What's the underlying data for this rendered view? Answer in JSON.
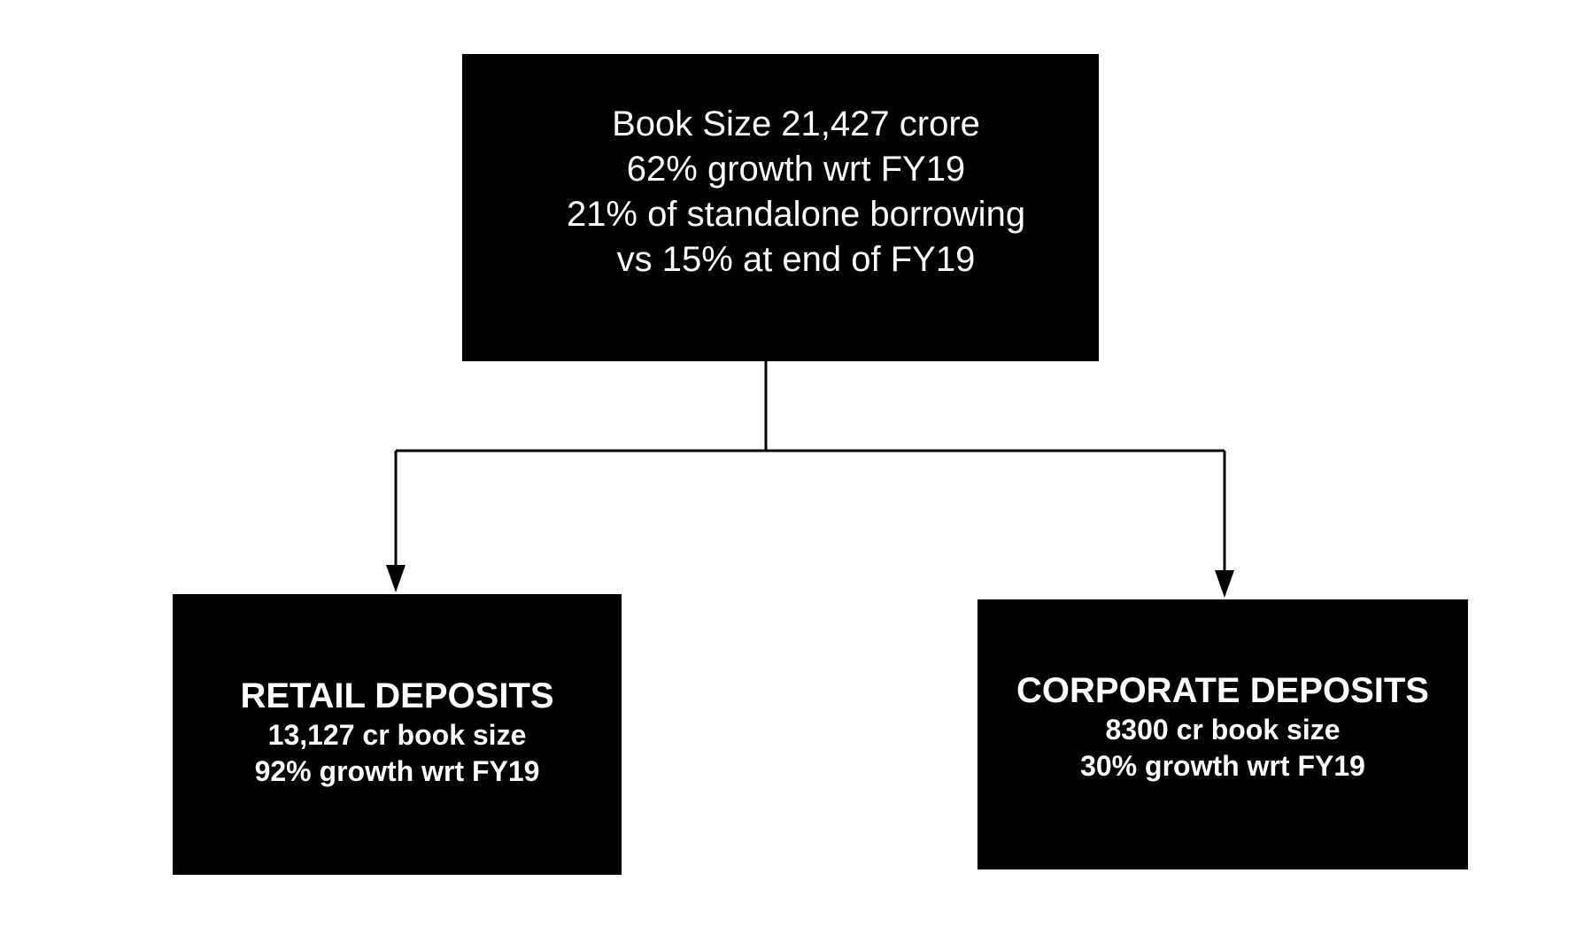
{
  "top_box": {
    "lines": [
      "Book Size 21,427 crore",
      "62% growth wrt FY19",
      "21% of standalone borrowing",
      "vs 15% at end of FY19"
    ]
  },
  "left_box": {
    "title": "RETAIL DEPOSITS",
    "lines": [
      "13,127 cr book size",
      "92% growth wrt FY19"
    ]
  },
  "right_box": {
    "title": "CORPORATE DEPOSITS",
    "lines": [
      "8300 cr book size",
      "30% growth wrt FY19"
    ]
  },
  "colors": {
    "box_fill": "#000000",
    "box_text": "#ffffff",
    "connector": "#000000",
    "background": "#ffffff"
  }
}
